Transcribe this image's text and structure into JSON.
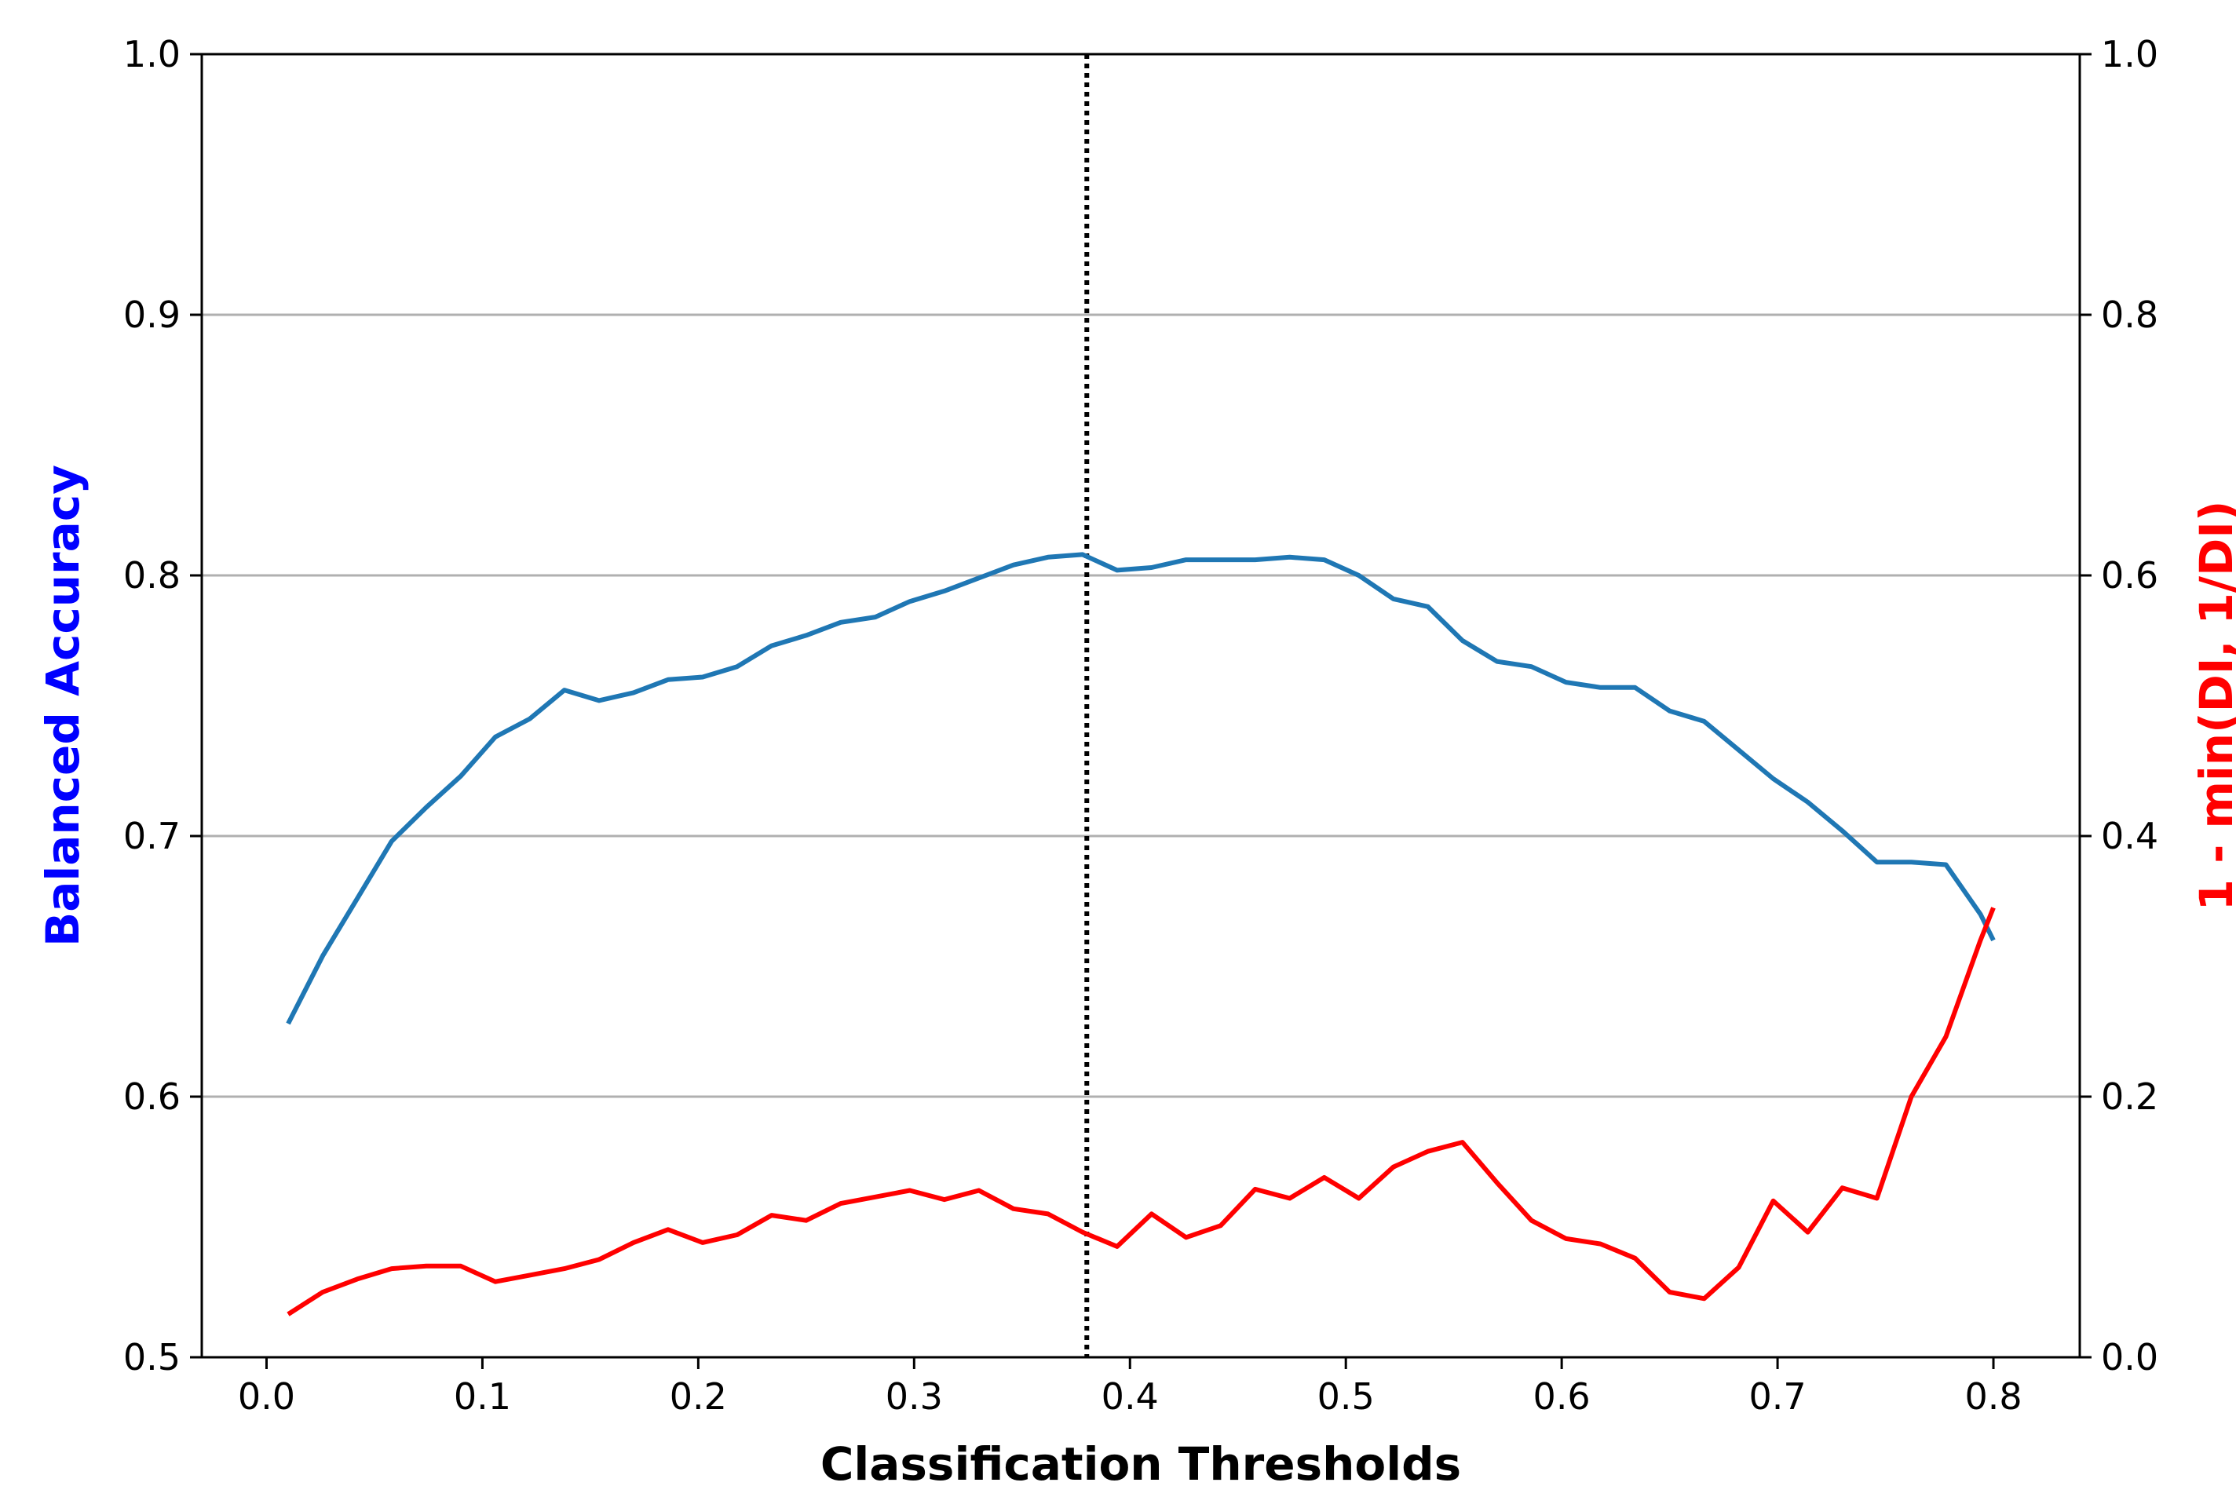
{
  "chart_data": {
    "type": "line",
    "xlabel": "Classification Thresholds",
    "ylabel_left": "Balanced Accuracy",
    "ylabel_right": "1 - min(DI, 1/DI)",
    "xlim": [
      -0.03,
      0.84
    ],
    "ylim_left": [
      0.5,
      1.0
    ],
    "ylim_right": [
      0.0,
      1.0
    ],
    "xticks": [
      "0.0",
      "0.1",
      "0.2",
      "0.3",
      "0.4",
      "0.5",
      "0.6",
      "0.7",
      "0.8"
    ],
    "yticks_left": [
      "0.5",
      "0.6",
      "0.7",
      "0.8",
      "0.9",
      "1.0"
    ],
    "yticks_right": [
      "0.0",
      "0.2",
      "0.4",
      "0.6",
      "0.8",
      "1.0"
    ],
    "grid": "horizontal",
    "vline_x": 0.38,
    "colors": {
      "left_axis_label": "#0000ff",
      "right_axis_label": "#ff0000",
      "balanced_accuracy": "#1f77b4",
      "disparate_impact": "#ff0000",
      "grid": "#b0b0b0",
      "vline": "#000000"
    },
    "x": [
      0.01,
      0.026,
      0.042,
      0.058,
      0.074,
      0.09,
      0.106,
      0.122,
      0.138,
      0.154,
      0.17,
      0.186,
      0.202,
      0.218,
      0.234,
      0.25,
      0.266,
      0.282,
      0.298,
      0.314,
      0.33,
      0.346,
      0.362,
      0.378,
      0.394,
      0.41,
      0.426,
      0.442,
      0.458,
      0.474,
      0.49,
      0.506,
      0.522,
      0.538,
      0.554,
      0.57,
      0.586,
      0.602,
      0.618,
      0.634,
      0.65,
      0.666,
      0.682,
      0.698,
      0.714,
      0.73,
      0.746,
      0.762,
      0.778,
      0.794,
      0.8
    ],
    "series": [
      {
        "axis": "left",
        "values": [
          0.628,
          0.654,
          0.676,
          0.698,
          0.711,
          0.723,
          0.738,
          0.745,
          0.756,
          0.752,
          0.755,
          0.76,
          0.761,
          0.765,
          0.773,
          0.777,
          0.782,
          0.784,
          0.79,
          0.794,
          0.799,
          0.804,
          0.807,
          0.808,
          0.802,
          0.803,
          0.806,
          0.806,
          0.806,
          0.807,
          0.806,
          0.8,
          0.791,
          0.788,
          0.775,
          0.767,
          0.765,
          0.759,
          0.757,
          0.757,
          0.748,
          0.744,
          0.733,
          0.722,
          0.713,
          0.702,
          0.69,
          0.69,
          0.689,
          0.67,
          0.66
        ]
      },
      {
        "axis": "right",
        "values": [
          0.033,
          0.05,
          0.06,
          0.068,
          0.07,
          0.07,
          0.058,
          0.063,
          0.068,
          0.075,
          0.088,
          0.098,
          0.088,
          0.094,
          0.109,
          0.105,
          0.118,
          0.123,
          0.128,
          0.121,
          0.128,
          0.114,
          0.11,
          0.096,
          0.085,
          0.11,
          0.092,
          0.101,
          0.129,
          0.122,
          0.138,
          0.122,
          0.146,
          0.158,
          0.165,
          0.134,
          0.105,
          0.091,
          0.087,
          0.076,
          0.05,
          0.045,
          0.069,
          0.12,
          0.096,
          0.13,
          0.122,
          0.2,
          0.246,
          0.32,
          0.345
        ]
      }
    ]
  }
}
